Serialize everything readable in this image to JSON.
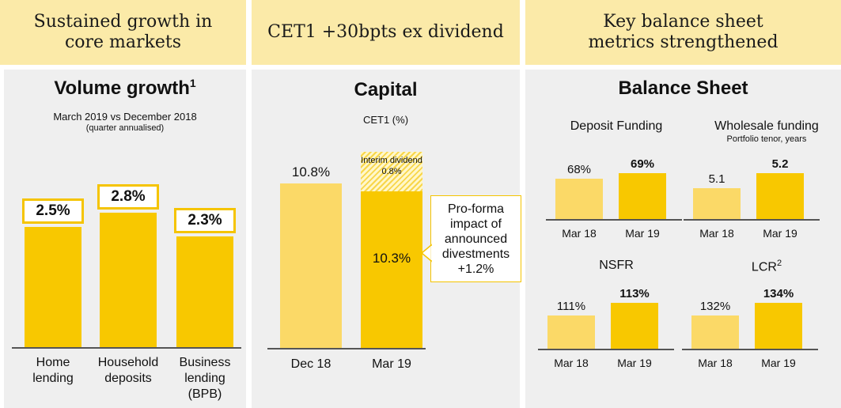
{
  "headers": {
    "left": [
      "Sustained growth in",
      "core markets"
    ],
    "middle": [
      "CET1 +30bpts ex dividend"
    ],
    "right": [
      "Key balance sheet",
      "metrics strengthened"
    ]
  },
  "volume": {
    "title": "Volume growth",
    "title_sup": "1",
    "subtitle": "March 2019 vs December 2018",
    "subtitle2": "(quarter annualised)"
  },
  "capital": {
    "title": "Capital",
    "subtitle": "CET1 (%)",
    "dividend_label": [
      "Interim dividend",
      "0.8%"
    ],
    "callout": [
      "Pro-forma",
      "impact of",
      "announced",
      "divestments",
      "+1.2%"
    ]
  },
  "balance": {
    "title": "Balance Sheet",
    "deposit_title": "Deposit Funding",
    "wholesale_title": "Wholesale funding",
    "wholesale_sub": "Portfolio tenor, years",
    "nsfr_title": "NSFR",
    "lcr_title": "LCR",
    "lcr_sup": "2"
  },
  "colors": {
    "dark_yellow": "#f8c800",
    "light_yellow": "#fbd967",
    "header_bg": "#fbeaa8",
    "panel_bg": "#efefef"
  },
  "chart_data": [
    {
      "type": "bar",
      "title": "Volume growth",
      "categories": [
        [
          "Home",
          "lending"
        ],
        [
          "Household",
          "deposits"
        ],
        [
          "Business",
          "lending",
          "(BPB)"
        ]
      ],
      "values": [
        2.5,
        2.8,
        2.3
      ],
      "labels": [
        "2.5%",
        "2.8%",
        "2.3%"
      ],
      "ylim": [
        0,
        3.4
      ]
    },
    {
      "type": "bar",
      "title": "Capital",
      "ylabel": "CET1 (%)",
      "categories": [
        "Dec 18",
        "Mar 19"
      ],
      "values": [
        10.8,
        10.3
      ],
      "labels": [
        "10.8%",
        "10.3%"
      ],
      "stacked_dividend": 0.8,
      "ylim": [
        0,
        12.5
      ]
    },
    {
      "type": "bar",
      "title": "Deposit Funding",
      "categories": [
        "Mar 18",
        "Mar 19"
      ],
      "values": [
        68,
        69
      ],
      "labels": [
        "68%",
        "69%"
      ]
    },
    {
      "type": "bar",
      "title": "Wholesale funding",
      "categories": [
        "Mar 18",
        "Mar 19"
      ],
      "values": [
        5.1,
        5.2
      ],
      "labels": [
        "5.1",
        "5.2"
      ]
    },
    {
      "type": "bar",
      "title": "NSFR",
      "categories": [
        "Mar 18",
        "Mar 19"
      ],
      "values": [
        111,
        113
      ],
      "labels": [
        "111%",
        "113%"
      ]
    },
    {
      "type": "bar",
      "title": "LCR",
      "categories": [
        "Mar 18",
        "Mar 19"
      ],
      "values": [
        132,
        134
      ],
      "labels": [
        "132%",
        "134%"
      ]
    }
  ]
}
